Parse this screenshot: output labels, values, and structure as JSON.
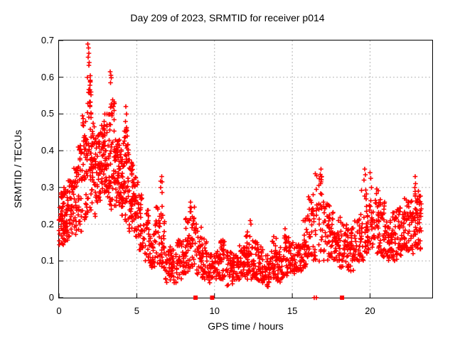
{
  "page": {
    "title": "Day 209 of 2023, SRMTID for receiver p014"
  },
  "chart_data": {
    "type": "scatter",
    "title": "Day 209 of 2023, SRMTID for receiver p014",
    "xlabel": "GPS time / hours",
    "ylabel": "SRMTID / TECUs",
    "xlim": [
      0,
      24
    ],
    "ylim": [
      0,
      0.7
    ],
    "xticks": [
      0,
      5,
      10,
      15,
      20
    ],
    "xtick_labels": [
      "0",
      "5",
      "10",
      "15",
      "20"
    ],
    "yticks": [
      0,
      0.1,
      0.2,
      0.3,
      0.4,
      0.5,
      0.6,
      0.7
    ],
    "ytick_labels": [
      "0",
      "0.1",
      "0.2",
      "0.3",
      "0.4",
      "0.5",
      "0.6",
      "0.7"
    ],
    "grid": true,
    "grid_color": "#b5b5b5",
    "axis_color": "#000000",
    "marker": "plus",
    "marker_color": "#ff0000",
    "seed": 20230209,
    "series_name": "SRMTID receiver p014",
    "density_bins": [
      [
        0.0,
        0.3,
        45,
        0.14,
        0.29,
        1.0
      ],
      [
        0.3,
        0.6,
        40,
        0.15,
        0.3,
        1.0
      ],
      [
        0.6,
        0.9,
        35,
        0.16,
        0.33,
        1.1
      ],
      [
        0.9,
        1.2,
        35,
        0.17,
        0.36,
        1.1
      ],
      [
        1.2,
        1.5,
        35,
        0.18,
        0.42,
        1.1
      ],
      [
        1.5,
        1.8,
        40,
        0.2,
        0.5,
        1.0
      ],
      [
        1.8,
        2.1,
        50,
        0.22,
        0.62,
        0.9
      ],
      [
        2.1,
        2.4,
        40,
        0.22,
        0.48,
        1.0
      ],
      [
        2.4,
        2.7,
        40,
        0.25,
        0.45,
        1.0
      ],
      [
        2.7,
        3.0,
        45,
        0.28,
        0.47,
        1.0
      ],
      [
        3.0,
        3.3,
        40,
        0.25,
        0.5,
        1.0
      ],
      [
        3.3,
        3.6,
        40,
        0.24,
        0.55,
        1.1
      ],
      [
        3.6,
        3.9,
        45,
        0.25,
        0.43,
        1.0
      ],
      [
        3.9,
        4.2,
        40,
        0.22,
        0.42,
        1.0
      ],
      [
        4.2,
        4.5,
        40,
        0.2,
        0.47,
        1.0
      ],
      [
        4.5,
        4.8,
        40,
        0.18,
        0.38,
        1.0
      ],
      [
        4.8,
        5.1,
        35,
        0.16,
        0.33,
        1.0
      ],
      [
        5.1,
        5.4,
        30,
        0.13,
        0.28,
        1.1
      ],
      [
        5.4,
        5.8,
        30,
        0.1,
        0.24,
        1.1
      ],
      [
        5.8,
        6.2,
        28,
        0.08,
        0.2,
        1.1
      ],
      [
        6.2,
        6.5,
        25,
        0.08,
        0.25,
        1.0
      ],
      [
        6.5,
        6.8,
        28,
        0.08,
        0.32,
        1.2
      ],
      [
        6.8,
        7.2,
        30,
        0.04,
        0.14,
        1.1
      ],
      [
        7.2,
        7.6,
        30,
        0.04,
        0.13,
        1.1
      ],
      [
        7.6,
        8.0,
        32,
        0.05,
        0.16,
        1.1
      ],
      [
        8.0,
        8.4,
        35,
        0.06,
        0.22,
        1.2
      ],
      [
        8.4,
        8.8,
        35,
        0.08,
        0.26,
        1.2
      ],
      [
        8.8,
        9.2,
        30,
        0.06,
        0.2,
        1.2
      ],
      [
        9.2,
        9.6,
        30,
        0.05,
        0.16,
        1.2
      ],
      [
        9.6,
        10.0,
        30,
        0.04,
        0.12,
        1.1
      ],
      [
        10.0,
        10.4,
        32,
        0.05,
        0.13,
        1.1
      ],
      [
        10.4,
        10.8,
        32,
        0.05,
        0.16,
        1.2
      ],
      [
        10.8,
        11.2,
        32,
        0.03,
        0.13,
        1.1
      ],
      [
        11.2,
        11.6,
        32,
        0.04,
        0.12,
        1.0
      ],
      [
        11.6,
        12.0,
        34,
        0.05,
        0.15,
        1.1
      ],
      [
        12.0,
        12.4,
        34,
        0.05,
        0.18,
        1.2
      ],
      [
        12.4,
        12.8,
        34,
        0.05,
        0.16,
        1.2
      ],
      [
        12.8,
        13.2,
        32,
        0.04,
        0.14,
        1.1
      ],
      [
        13.2,
        13.6,
        32,
        0.03,
        0.12,
        1.1
      ],
      [
        13.6,
        14.0,
        32,
        0.05,
        0.17,
        1.2
      ],
      [
        14.0,
        14.4,
        32,
        0.04,
        0.14,
        1.1
      ],
      [
        14.4,
        14.8,
        34,
        0.06,
        0.19,
        1.2
      ],
      [
        14.8,
        15.2,
        32,
        0.06,
        0.15,
        1.1
      ],
      [
        15.2,
        15.6,
        32,
        0.07,
        0.16,
        1.1
      ],
      [
        15.6,
        16.0,
        32,
        0.08,
        0.22,
        1.1
      ],
      [
        16.0,
        16.4,
        34,
        0.1,
        0.28,
        1.1
      ],
      [
        16.4,
        17.0,
        38,
        0.1,
        0.34,
        1.2
      ],
      [
        17.0,
        17.4,
        34,
        0.1,
        0.26,
        1.1
      ],
      [
        17.4,
        17.8,
        34,
        0.1,
        0.24,
        1.1
      ],
      [
        17.8,
        18.2,
        32,
        0.08,
        0.22,
        1.1
      ],
      [
        18.2,
        18.6,
        32,
        0.08,
        0.2,
        1.1
      ],
      [
        18.6,
        19.0,
        32,
        0.07,
        0.19,
        1.1
      ],
      [
        19.0,
        19.4,
        32,
        0.09,
        0.22,
        1.1
      ],
      [
        19.4,
        19.8,
        34,
        0.1,
        0.3,
        1.1
      ],
      [
        19.8,
        20.2,
        34,
        0.12,
        0.32,
        1.1
      ],
      [
        20.2,
        20.6,
        34,
        0.12,
        0.3,
        1.1
      ],
      [
        20.6,
        21.0,
        34,
        0.11,
        0.27,
        1.1
      ],
      [
        21.0,
        21.4,
        34,
        0.1,
        0.23,
        1.1
      ],
      [
        21.4,
        21.8,
        34,
        0.1,
        0.24,
        1.1
      ],
      [
        21.8,
        22.2,
        36,
        0.11,
        0.25,
        1.1
      ],
      [
        22.2,
        22.6,
        38,
        0.12,
        0.27,
        1.1
      ],
      [
        22.6,
        23.0,
        40,
        0.12,
        0.3,
        1.1
      ],
      [
        23.0,
        23.3,
        36,
        0.13,
        0.28,
        1.0
      ]
    ],
    "peak_points": [
      [
        1.86,
        0.69
      ],
      [
        1.9,
        0.68
      ],
      [
        1.92,
        0.665
      ],
      [
        1.88,
        0.655
      ],
      [
        1.95,
        0.64
      ],
      [
        1.93,
        0.632
      ],
      [
        2.0,
        0.592
      ],
      [
        2.03,
        0.56
      ],
      [
        1.98,
        0.52
      ],
      [
        2.05,
        0.5
      ],
      [
        3.3,
        0.615
      ],
      [
        3.33,
        0.605
      ],
      [
        3.36,
        0.598
      ],
      [
        3.32,
        0.585
      ],
      [
        3.4,
        0.52
      ],
      [
        3.42,
        0.5
      ],
      [
        4.3,
        0.52
      ],
      [
        4.34,
        0.5
      ],
      [
        4.28,
        0.48
      ],
      [
        2.95,
        0.5
      ],
      [
        2.9,
        0.48
      ],
      [
        6.6,
        0.33
      ],
      [
        6.63,
        0.315
      ],
      [
        8.45,
        0.26
      ],
      [
        8.5,
        0.245
      ],
      [
        16.85,
        0.35
      ],
      [
        16.88,
        0.33
      ],
      [
        16.82,
        0.31
      ],
      [
        16.35,
        0.28
      ],
      [
        12.3,
        0.21
      ],
      [
        12.35,
        0.2
      ],
      [
        19.65,
        0.35
      ],
      [
        19.7,
        0.335
      ],
      [
        19.6,
        0.32
      ],
      [
        20.0,
        0.34
      ],
      [
        20.05,
        0.325
      ],
      [
        22.9,
        0.33
      ],
      [
        22.93,
        0.31
      ],
      [
        23.1,
        0.29
      ]
    ],
    "zero_markers": {
      "squares": [
        8.78,
        9.85,
        18.2
      ],
      "plus": [
        16.42,
        16.55
      ]
    }
  }
}
